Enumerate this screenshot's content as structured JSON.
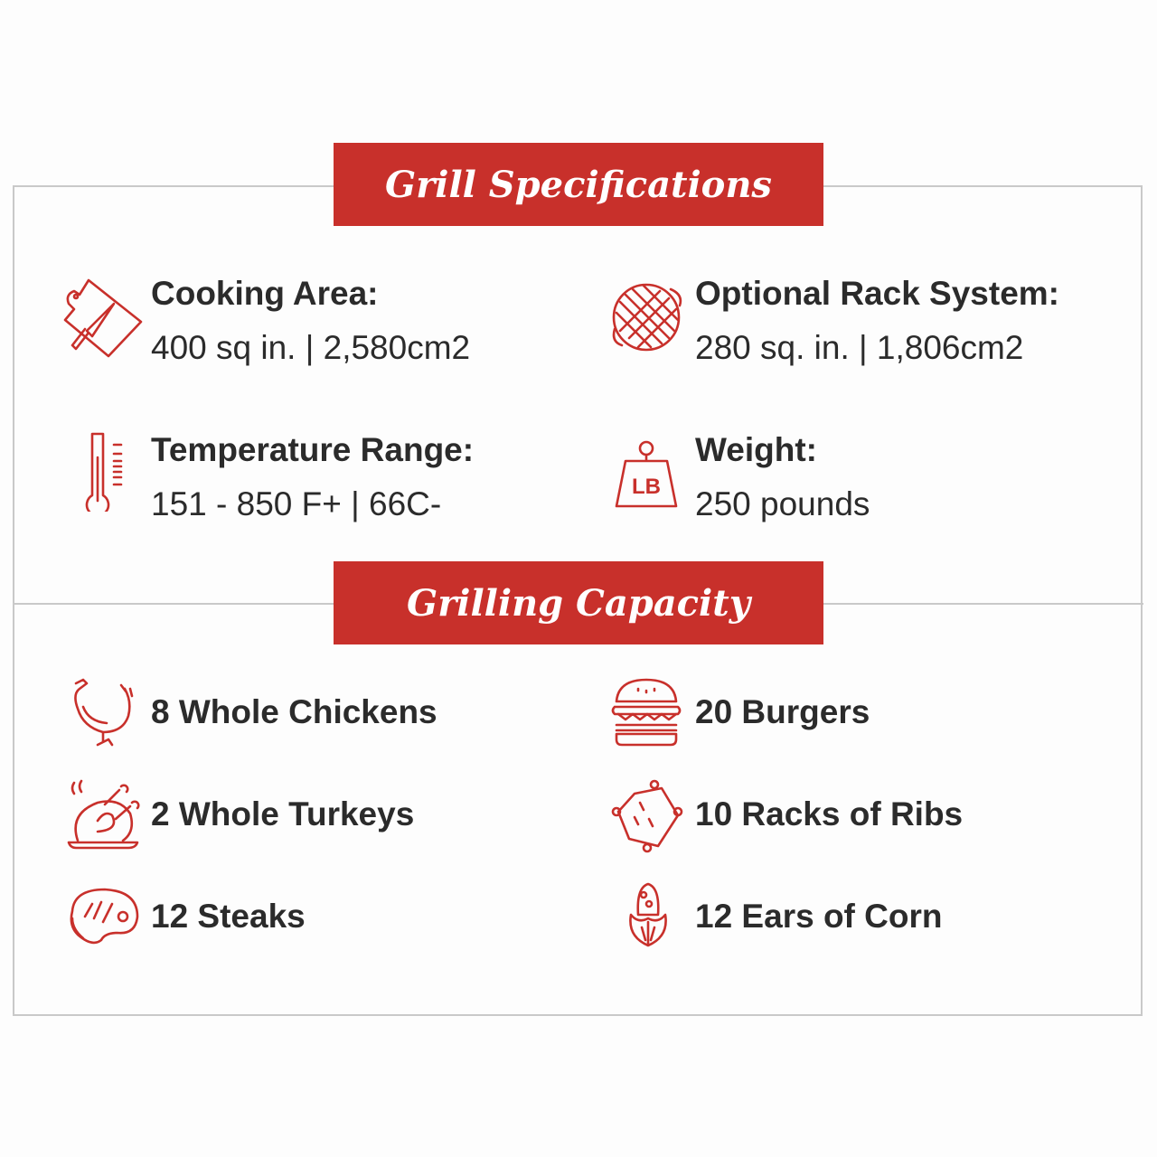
{
  "specs": {
    "title": "Grill Specifications",
    "items": [
      {
        "label": "Cooking Area:",
        "value": "400 sq in. | 2,580cm2",
        "icon": "cutting-board-knife-icon"
      },
      {
        "label": "Optional Rack System:",
        "value": "280 sq. in. | 1,806cm2",
        "icon": "grill-grate-icon"
      },
      {
        "label": "Temperature Range:",
        "value": "151 - 850 F+ | 66C-",
        "icon": "thermometer-icon"
      },
      {
        "label": "Weight:",
        "value": "250 pounds",
        "icon": "weight-icon",
        "icon_text": "LB"
      }
    ]
  },
  "capacity": {
    "title": "Grilling Capacity",
    "items": [
      {
        "label": "8 Whole Chickens",
        "icon": "chicken-icon"
      },
      {
        "label": "20 Burgers",
        "icon": "burger-icon"
      },
      {
        "label": "2 Whole Turkeys",
        "icon": "roast-turkey-icon"
      },
      {
        "label": "10 Racks of Ribs",
        "icon": "ribs-icon"
      },
      {
        "label": "12 Steaks",
        "icon": "steak-icon"
      },
      {
        "label": "12 Ears of Corn",
        "icon": "corn-icon"
      }
    ]
  },
  "colors": {
    "accent": "#c8302b",
    "text": "#2b2b2b",
    "border": "#c9c9c9"
  }
}
